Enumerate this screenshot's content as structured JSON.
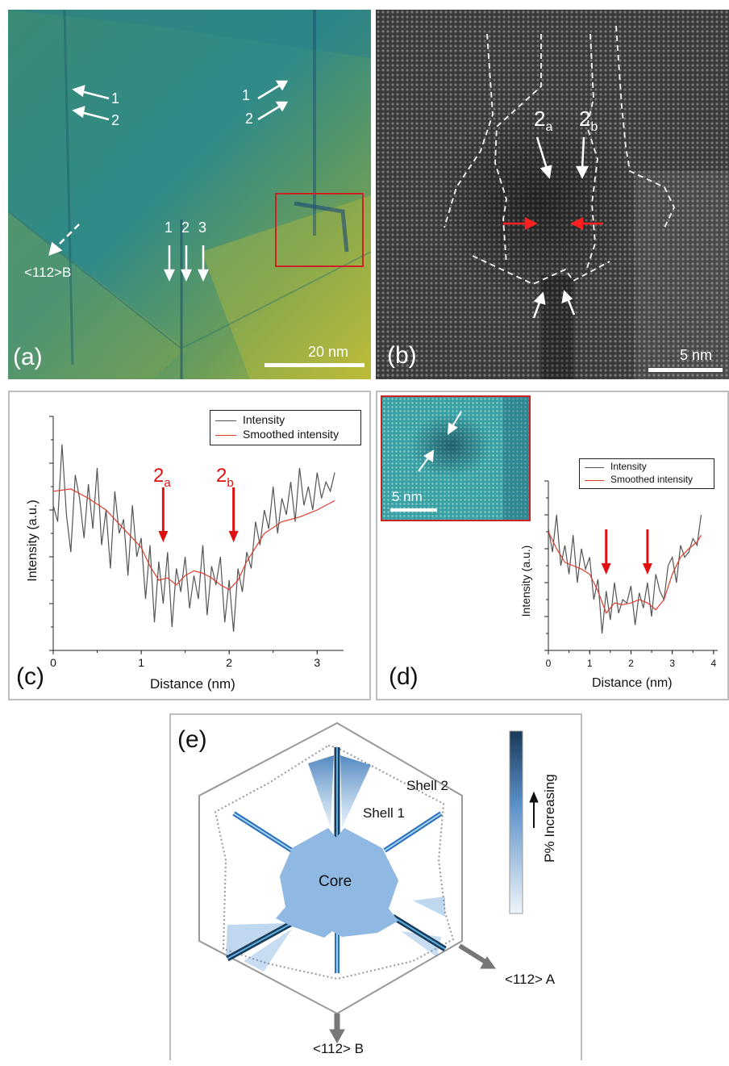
{
  "panel_a": {
    "label": "(a)",
    "scalebar": "20 nm",
    "direction": "<112>B",
    "arrows_left": [
      "1",
      "2"
    ],
    "arrows_right": [
      "1",
      "2"
    ],
    "arrows_bottom": [
      "1",
      "2",
      "3"
    ]
  },
  "panel_b": {
    "label": "(b)",
    "scalebar": "5 nm",
    "marker_a_base": "2",
    "marker_a_sub": "a",
    "marker_b_base": "2",
    "marker_b_sub": "b"
  },
  "panel_c": {
    "label": "(c)",
    "legend": [
      "Intensity",
      "Smoothed intensity"
    ],
    "marker_a_base": "2",
    "marker_a_sub": "a",
    "marker_b_base": "2",
    "marker_b_sub": "b",
    "xticks": [
      "0",
      "1",
      "2",
      "3"
    ]
  },
  "panel_d": {
    "label": "(d)",
    "inset_scalebar": "5 nm",
    "legend": [
      "Intensity",
      "Smoothed intensity"
    ],
    "xticks": [
      "0",
      "1",
      "2",
      "3",
      "4"
    ]
  },
  "panel_e": {
    "label": "(e)",
    "core": "Core",
    "shell1": "Shell 1",
    "shell2": "Shell 2",
    "colorbar_label": "P% Increasing",
    "dir_a": "<112> A",
    "dir_b": "<112> B"
  },
  "chart_data": [
    {
      "type": "line",
      "xlabel": "Distance (nm)",
      "ylabel": "Intensity (a.u.)",
      "xlim": [
        0,
        3.3
      ],
      "ylim": [
        0,
        1
      ],
      "xticks": [
        0,
        1,
        2,
        3
      ],
      "legend_position": "top-right",
      "annotations": [
        {
          "text": "2a",
          "x": 1.25
        },
        {
          "text": "2b",
          "x": 2.05
        }
      ],
      "series": [
        {
          "name": "Intensity",
          "color": "#555555",
          "x": [
            0.0,
            0.05,
            0.1,
            0.15,
            0.2,
            0.25,
            0.3,
            0.35,
            0.4,
            0.45,
            0.5,
            0.55,
            0.6,
            0.65,
            0.7,
            0.75,
            0.8,
            0.85,
            0.9,
            0.95,
            1.0,
            1.05,
            1.1,
            1.15,
            1.2,
            1.25,
            1.3,
            1.35,
            1.4,
            1.45,
            1.5,
            1.55,
            1.6,
            1.65,
            1.7,
            1.75,
            1.8,
            1.85,
            1.9,
            1.95,
            2.0,
            2.05,
            2.1,
            2.15,
            2.2,
            2.25,
            2.3,
            2.35,
            2.4,
            2.45,
            2.5,
            2.55,
            2.6,
            2.65,
            2.7,
            2.75,
            2.8,
            2.85,
            2.9,
            2.95,
            3.0,
            3.05,
            3.1,
            3.15,
            3.2
          ],
          "y": [
            0.62,
            0.55,
            0.88,
            0.58,
            0.42,
            0.75,
            0.65,
            0.48,
            0.71,
            0.52,
            0.78,
            0.45,
            0.6,
            0.35,
            0.68,
            0.5,
            0.56,
            0.32,
            0.62,
            0.4,
            0.48,
            0.22,
            0.45,
            0.12,
            0.38,
            0.2,
            0.42,
            0.1,
            0.35,
            0.25,
            0.4,
            0.18,
            0.32,
            0.22,
            0.45,
            0.15,
            0.36,
            0.28,
            0.4,
            0.12,
            0.3,
            0.08,
            0.35,
            0.25,
            0.42,
            0.35,
            0.55,
            0.45,
            0.6,
            0.52,
            0.7,
            0.5,
            0.65,
            0.58,
            0.72,
            0.55,
            0.78,
            0.62,
            0.7,
            0.6,
            0.76,
            0.65,
            0.72,
            0.68,
            0.76
          ]
        },
        {
          "name": "Smoothed intensity",
          "color": "#e03a2a",
          "x": [
            0.0,
            0.2,
            0.4,
            0.6,
            0.8,
            1.0,
            1.1,
            1.2,
            1.3,
            1.4,
            1.5,
            1.6,
            1.7,
            1.8,
            1.9,
            2.0,
            2.1,
            2.2,
            2.4,
            2.6,
            2.8,
            3.0,
            3.2
          ],
          "y": [
            0.68,
            0.69,
            0.65,
            0.6,
            0.52,
            0.44,
            0.36,
            0.3,
            0.31,
            0.28,
            0.32,
            0.34,
            0.33,
            0.31,
            0.28,
            0.26,
            0.3,
            0.38,
            0.5,
            0.55,
            0.57,
            0.6,
            0.64
          ]
        }
      ]
    },
    {
      "type": "line",
      "xlabel": "Distance (nm)",
      "ylabel": "Intensity (a.u.)",
      "xlim": [
        0,
        4.1
      ],
      "ylim": [
        0,
        1
      ],
      "xticks": [
        0,
        1,
        2,
        3,
        4
      ],
      "legend_position": "top-right",
      "annotations": [
        {
          "text": "",
          "x": 1.4
        },
        {
          "text": "",
          "x": 2.4
        }
      ],
      "series": [
        {
          "name": "Intensity",
          "color": "#555555",
          "x": [
            0.0,
            0.1,
            0.2,
            0.3,
            0.4,
            0.5,
            0.6,
            0.7,
            0.8,
            0.9,
            1.0,
            1.1,
            1.2,
            1.3,
            1.4,
            1.5,
            1.6,
            1.7,
            1.8,
            1.9,
            2.0,
            2.1,
            2.2,
            2.3,
            2.4,
            2.5,
            2.6,
            2.7,
            2.8,
            2.9,
            3.0,
            3.1,
            3.2,
            3.3,
            3.4,
            3.5,
            3.6,
            3.7
          ],
          "y": [
            0.72,
            0.58,
            0.8,
            0.5,
            0.62,
            0.45,
            0.68,
            0.4,
            0.6,
            0.48,
            0.55,
            0.3,
            0.42,
            0.1,
            0.35,
            0.18,
            0.4,
            0.22,
            0.3,
            0.28,
            0.38,
            0.15,
            0.34,
            0.25,
            0.4,
            0.2,
            0.45,
            0.35,
            0.3,
            0.5,
            0.55,
            0.4,
            0.62,
            0.55,
            0.58,
            0.66,
            0.62,
            0.8
          ]
        },
        {
          "name": "Smoothed intensity",
          "color": "#e03a2a",
          "x": [
            0.0,
            0.2,
            0.4,
            0.6,
            0.8,
            1.0,
            1.2,
            1.4,
            1.6,
            1.8,
            2.0,
            2.2,
            2.4,
            2.6,
            2.8,
            3.0,
            3.2,
            3.4,
            3.6,
            3.7
          ],
          "y": [
            0.7,
            0.6,
            0.52,
            0.5,
            0.48,
            0.45,
            0.35,
            0.22,
            0.28,
            0.27,
            0.28,
            0.3,
            0.28,
            0.24,
            0.3,
            0.45,
            0.55,
            0.6,
            0.64,
            0.68
          ]
        }
      ]
    }
  ]
}
